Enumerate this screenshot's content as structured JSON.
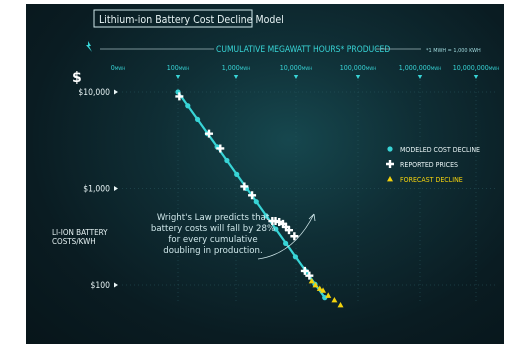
{
  "chart_data": {
    "type": "scatter",
    "title": "Lithium-ion Battery Cost Decline Model",
    "top_axis": {
      "label": "CUMULATIVE MEGAWATT HOURS* PRODUCED",
      "note": "*1 MWH = 1,000 KWH",
      "ticks": [
        "0MWH",
        "100MWH",
        "1,000MWH",
        "10,000MWH",
        "100,000MWH",
        "1,000,000MWH",
        "10,000,000MWH"
      ]
    },
    "y_axis": {
      "label": "LI-ION BATTERY COSTS/KWH",
      "unit_symbol": "$",
      "scale": "log",
      "ylim": [
        60,
        12000
      ],
      "ticks": [
        {
          "value": 10000,
          "label": "$10,000"
        },
        {
          "value": 1000,
          "label": "$1,000"
        },
        {
          "value": 100,
          "label": "$100"
        }
      ]
    },
    "x_scale": "log",
    "xlim": [
      10,
      20000000
    ],
    "legend": {
      "placement": "right",
      "items": [
        {
          "label": "MODELED COST DECLINE",
          "marker": "circle",
          "color": "#38d4d6"
        },
        {
          "label": "REPORTED PRICES",
          "marker": "plus",
          "color": "#ffffff"
        },
        {
          "label": "FORECAST DECLINE",
          "marker": "triangle",
          "color": "#f3d20d"
        }
      ]
    },
    "annotation": {
      "lines": [
        "Wright's Law predicts that",
        "battery costs will fall by 28%",
        "for every cumulative",
        "doubling in production."
      ]
    },
    "series": [
      {
        "name": "MODELED COST DECLINE",
        "marker": "circle",
        "color": "#38d4d6",
        "points": [
          [
            100,
            10000
          ],
          [
            200,
            7200
          ],
          [
            400,
            5200
          ],
          [
            800,
            3700
          ],
          [
            1600,
            2700
          ],
          [
            3200,
            1950
          ],
          [
            6400,
            1400
          ],
          [
            12800,
            1000
          ],
          [
            25600,
            730
          ],
          [
            51200,
            520
          ],
          [
            102400,
            380
          ],
          [
            204800,
            270
          ],
          [
            409600,
            196
          ],
          [
            819200,
            141
          ],
          [
            1638400,
            102
          ],
          [
            3276800,
            74
          ]
        ]
      },
      {
        "name": "REPORTED PRICES",
        "marker": "plus",
        "color": "#ffffff",
        "points": [
          [
            110,
            9000
          ],
          [
            900,
            3700
          ],
          [
            2000,
            2600
          ],
          [
            11000,
            1050
          ],
          [
            19000,
            850
          ],
          [
            80000,
            460
          ],
          [
            100000,
            460
          ],
          [
            130000,
            450
          ],
          [
            170000,
            430
          ],
          [
            210000,
            400
          ],
          [
            260000,
            370
          ],
          [
            380000,
            320
          ],
          [
            800000,
            140
          ],
          [
            1100000,
            125
          ]
        ]
      },
      {
        "name": "FORECAST DECLINE",
        "marker": "triangle",
        "color": "#f3d20d",
        "points": [
          [
            1300000,
            110
          ],
          [
            1700000,
            100
          ],
          [
            2300000,
            92
          ],
          [
            2900000,
            88
          ],
          [
            4200000,
            78
          ],
          [
            6500000,
            70
          ],
          [
            10000000,
            62
          ]
        ]
      }
    ]
  }
}
